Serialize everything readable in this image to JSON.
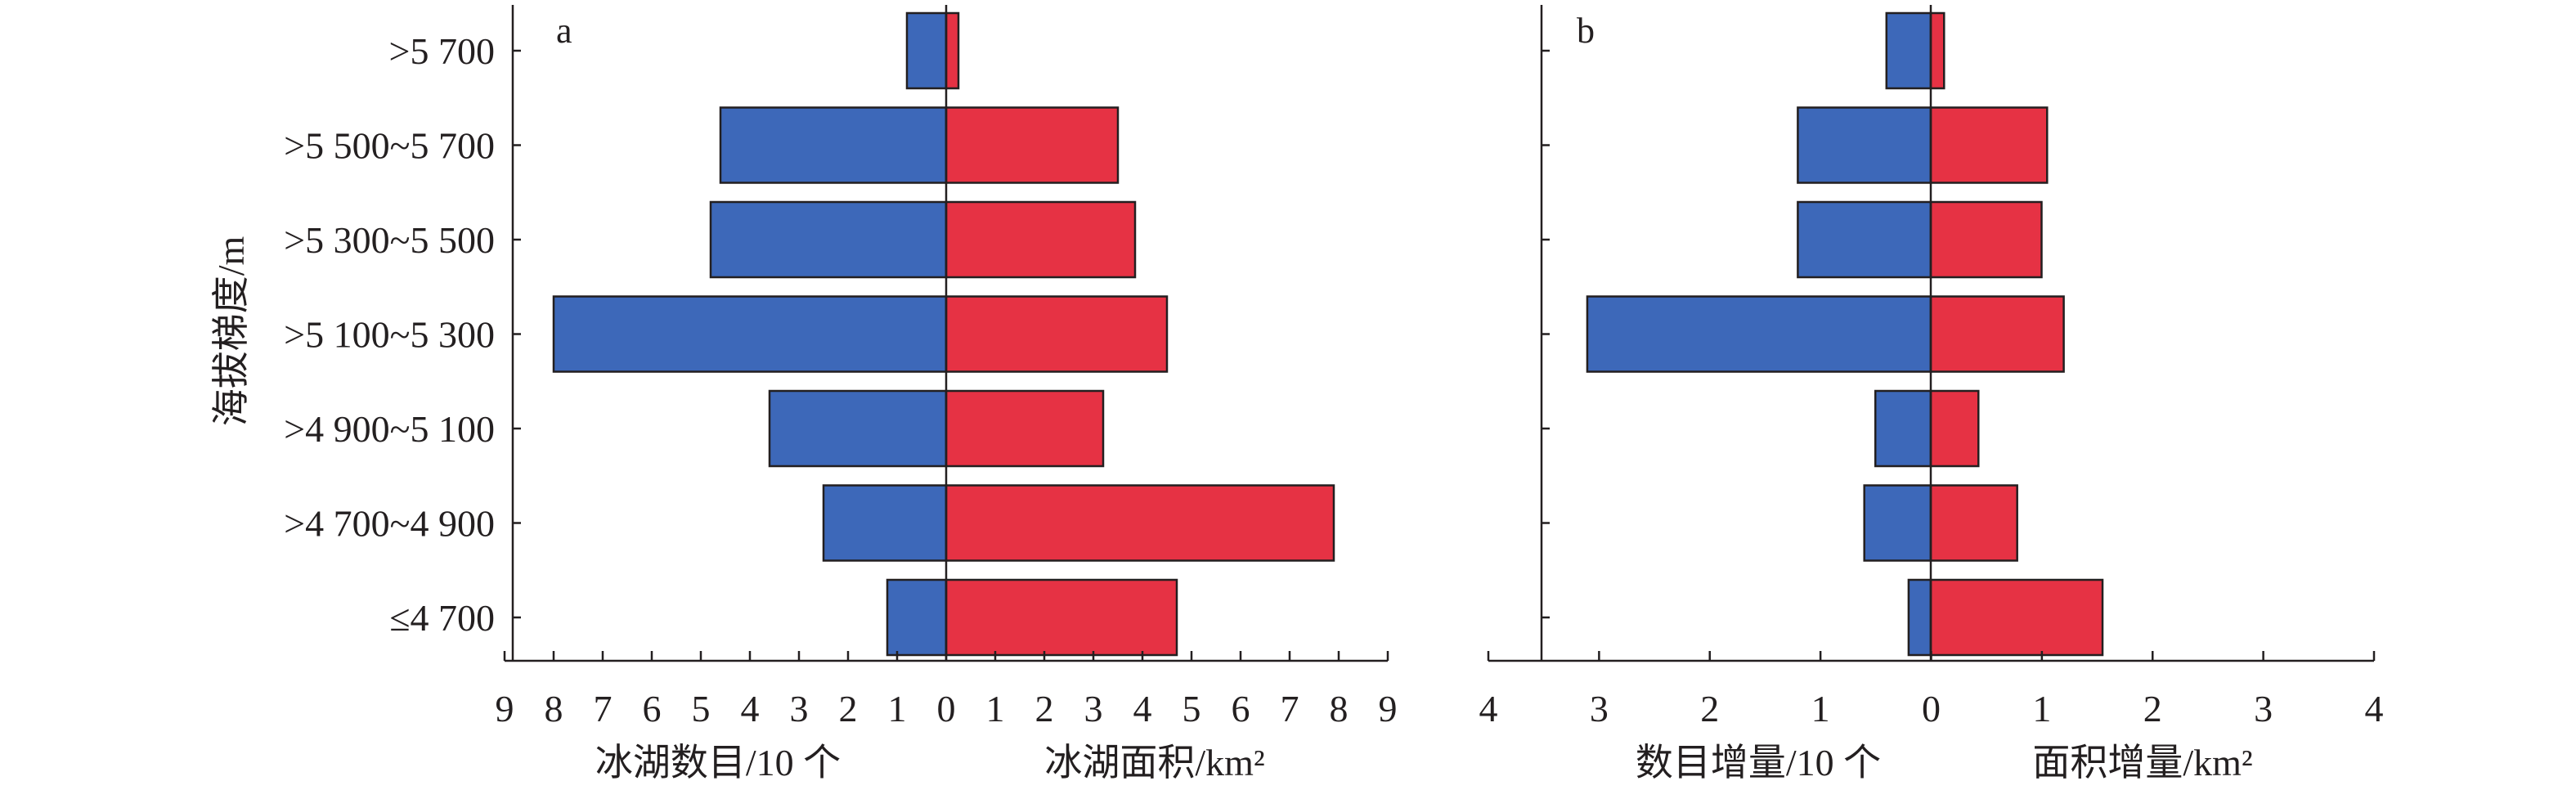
{
  "chart_data": [
    {
      "type": "bar",
      "orientation": "horizontal",
      "panel_label": "a",
      "ylabel": "海拔梯度/m",
      "categories": [
        ">5 700",
        ">5 500~5 700",
        ">5 300~5 500",
        ">5 100~5 300",
        ">4 900~5 100",
        ">4 700~4 900",
        "≤4 700"
      ],
      "series": [
        {
          "name": "冰湖数目/10 个",
          "side": "left",
          "color": "#3d68b9",
          "values": [
            0.8,
            4.6,
            4.8,
            8.0,
            3.6,
            2.5,
            1.2
          ]
        },
        {
          "name": "冰湖面积/km²",
          "side": "right",
          "color": "#e63244",
          "values": [
            0.25,
            3.5,
            3.85,
            4.5,
            3.2,
            7.9,
            4.7
          ]
        }
      ],
      "xlabel_left": "冰湖数目/10 个",
      "xlabel_right": "冰湖面积/km²",
      "xlim": [
        -9,
        9
      ],
      "xticks": [
        9,
        8,
        7,
        6,
        5,
        4,
        3,
        2,
        1,
        0,
        1,
        2,
        3,
        4,
        5,
        6,
        7,
        8,
        9
      ],
      "legend": "none",
      "grid": false
    },
    {
      "type": "bar",
      "orientation": "horizontal",
      "panel_label": "b",
      "categories": [
        ">5 700",
        ">5 500~5 700",
        ">5 300~5 500",
        ">5 100~5 300",
        ">4 900~5 100",
        ">4 700~4 900",
        "≤4 700"
      ],
      "series": [
        {
          "name": "数目增量/10 个",
          "side": "left",
          "color": "#3d68b9",
          "values": [
            0.4,
            1.2,
            1.2,
            3.1,
            0.5,
            0.6,
            0.2
          ]
        },
        {
          "name": "面积增量/km²",
          "side": "right",
          "color": "#e63244",
          "values": [
            0.12,
            1.05,
            1.0,
            1.2,
            0.43,
            0.78,
            1.55
          ]
        }
      ],
      "xlabel_left": "数目增量/10 个",
      "xlabel_right": "面积增量/km²",
      "xlim": [
        -4,
        4
      ],
      "xticks": [
        4,
        3,
        2,
        1,
        0,
        1,
        2,
        3,
        4
      ],
      "legend": "none",
      "grid": false
    }
  ]
}
